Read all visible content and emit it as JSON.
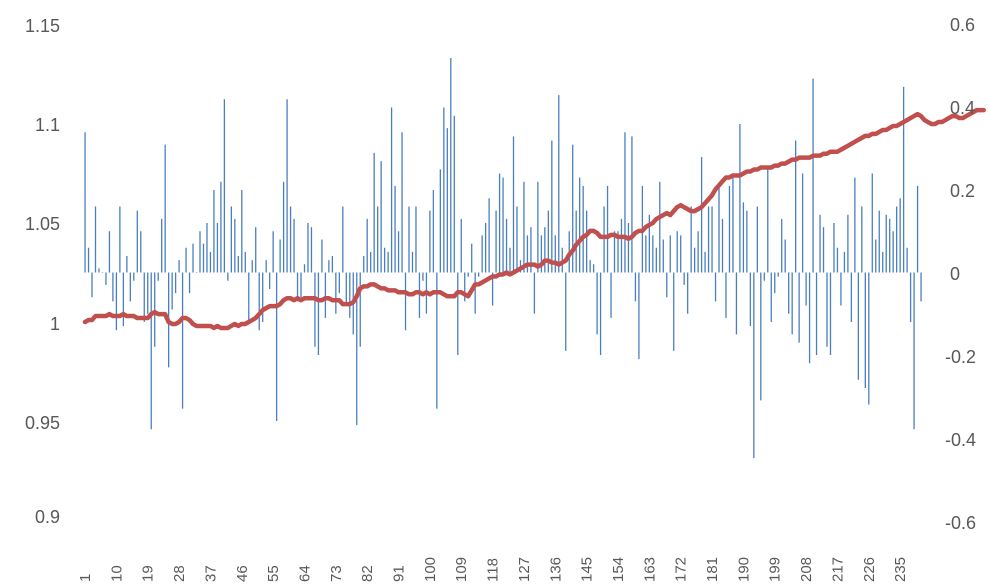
{
  "chart_data": {
    "type": "bar+line",
    "title": "",
    "grid": false,
    "legend": "none",
    "x_categories_labeled": [
      "1",
      "10",
      "19",
      "28",
      "37",
      "46",
      "55",
      "64",
      "73",
      "82",
      "91",
      "100",
      "109",
      "118",
      "127",
      "136",
      "145",
      "154",
      "163",
      "172",
      "181",
      "190",
      "199",
      "208",
      "217",
      "226",
      "235"
    ],
    "n_points": 241,
    "y_left": {
      "min": 0.9,
      "max": 1.15,
      "ticks": [
        "0.9",
        "0.95",
        "1",
        "1.05",
        "1.1",
        "1.15"
      ]
    },
    "y_right": {
      "min": -0.6,
      "max": 0.6,
      "ticks": [
        "-0.6",
        "-0.4",
        "-0.2",
        "0",
        "0.2",
        "0.4",
        "0.6"
      ]
    },
    "colors": {
      "bars": "#4a7fbf",
      "line": "#c0504d",
      "text": "#595959"
    },
    "series": [
      {
        "type": "bar",
        "axis": "right",
        "values": [
          0.34,
          0.06,
          -0.06,
          0.16,
          0.01,
          0.0,
          -0.03,
          0.1,
          -0.07,
          -0.14,
          0.16,
          -0.13,
          0.04,
          -0.07,
          -0.02,
          0.15,
          0.1,
          -0.12,
          -0.1,
          -0.38,
          -0.18,
          -0.02,
          0.13,
          0.31,
          -0.23,
          -0.09,
          -0.05,
          0.03,
          -0.33,
          0.06,
          -0.05,
          0.07,
          0.0,
          0.1,
          0.07,
          0.12,
          0.05,
          0.2,
          0.12,
          0.22,
          0.42,
          -0.02,
          0.16,
          0.13,
          0.04,
          0.2,
          0.05,
          -0.12,
          0.03,
          0.11,
          -0.14,
          -0.12,
          0.03,
          -0.04,
          0.1,
          -0.36,
          0.08,
          0.22,
          0.42,
          0.16,
          0.13,
          -0.07,
          -0.06,
          0.02,
          0.12,
          0.11,
          -0.18,
          -0.2,
          0.08,
          -0.11,
          0.03,
          0.04,
          -0.1,
          -0.05,
          0.16,
          -0.08,
          -0.11,
          -0.15,
          -0.37,
          -0.18,
          0.04,
          0.13,
          0.05,
          0.29,
          0.16,
          0.27,
          0.06,
          0.05,
          0.4,
          0.21,
          0.1,
          0.34,
          -0.14,
          0.16,
          0.05,
          0.16,
          -0.11,
          -0.02,
          -0.1,
          0.15,
          0.2,
          -0.33,
          0.25,
          0.4,
          0.35,
          0.52,
          0.38,
          -0.2,
          0.13,
          -0.07,
          -0.01,
          0.07,
          -0.1,
          -0.01,
          0.09,
          0.12,
          0.18,
          -0.08,
          0.15,
          0.24,
          0.23,
          0.13,
          0.06,
          0.33,
          0.16,
          0.03,
          0.22,
          0.09,
          0.11,
          -0.1,
          0.22,
          0.09,
          0.11,
          0.15,
          0.32,
          0.09,
          0.43,
          0.06,
          -0.19,
          0.1,
          0.31,
          0.15,
          0.23,
          0.21,
          0.15,
          0.03,
          0.02,
          -0.15,
          -0.2,
          0.16,
          0.21,
          -0.11,
          0.1,
          0.1,
          0.13,
          0.34,
          0.12,
          0.33,
          -0.07,
          -0.21,
          0.21,
          0.09,
          0.14,
          0.09,
          0.06,
          0.22,
          0.08,
          -0.06,
          0.09,
          -0.19,
          0.1,
          0.09,
          -0.03,
          -0.1,
          0.16,
          0.06,
          0.1,
          0.28,
          0.05,
          0.16,
          0.16,
          -0.07,
          0.21,
          0.13,
          -0.11,
          0.21,
          0.23,
          -0.15,
          0.36,
          0.17,
          0.15,
          -0.13,
          -0.45,
          0.16,
          -0.31,
          -0.02,
          0.25,
          -0.12,
          -0.05,
          -0.01,
          0.13,
          0.08,
          -0.1,
          -0.15,
          0.32,
          -0.17,
          0.24,
          -0.08,
          -0.22,
          0.47,
          -0.2,
          0.14,
          0.11,
          -0.18,
          -0.2,
          0.12,
          0.06,
          -0.08,
          0.05,
          0.14,
          -0.12,
          0.23,
          -0.26,
          0.16,
          -0.28,
          -0.32,
          0.24,
          0.08,
          0.15,
          0.05,
          0.14,
          0.13,
          0.1,
          0.16,
          0.18,
          0.45,
          0.06,
          -0.12,
          -0.38,
          0.21,
          -0.07
        ],
        "name": ""
      },
      {
        "type": "line",
        "axis": "left",
        "name": "",
        "values": [
          1.0,
          1.001,
          1.001,
          1.003,
          1.003,
          1.003,
          1.003,
          1.004,
          1.003,
          1.003,
          1.003,
          1.004,
          1.003,
          1.003,
          1.003,
          1.002,
          1.002,
          1.002,
          1.002,
          1.004,
          1.005,
          1.004,
          1.004,
          1.004,
          1.0,
          0.999,
          0.999,
          1.0,
          1.002,
          1.002,
          1.001,
          0.999,
          0.998,
          0.998,
          0.998,
          0.998,
          0.998,
          0.997,
          0.998,
          0.997,
          0.997,
          0.997,
          0.998,
          0.999,
          0.998,
          0.999,
          0.999,
          1.0,
          1.001,
          1.002,
          1.004,
          1.006,
          1.007,
          1.008,
          1.008,
          1.008,
          1.009,
          1.011,
          1.012,
          1.012,
          1.011,
          1.012,
          1.011,
          1.012,
          1.012,
          1.012,
          1.012,
          1.011,
          1.011,
          1.012,
          1.012,
          1.011,
          1.011,
          1.011,
          1.009,
          1.009,
          1.009,
          1.01,
          1.013,
          1.017,
          1.018,
          1.018,
          1.019,
          1.019,
          1.018,
          1.017,
          1.017,
          1.016,
          1.016,
          1.016,
          1.015,
          1.015,
          1.015,
          1.014,
          1.014,
          1.015,
          1.015,
          1.014,
          1.015,
          1.014,
          1.015,
          1.015,
          1.015,
          1.014,
          1.013,
          1.013,
          1.013,
          1.015,
          1.015,
          1.014,
          1.013,
          1.016,
          1.019,
          1.019,
          1.02,
          1.021,
          1.022,
          1.023,
          1.023,
          1.024,
          1.024,
          1.025,
          1.024,
          1.025,
          1.026,
          1.027,
          1.028,
          1.029,
          1.029,
          1.029,
          1.028,
          1.029,
          1.031,
          1.031,
          1.03,
          1.03,
          1.029,
          1.03,
          1.031,
          1.034,
          1.036,
          1.039,
          1.041,
          1.043,
          1.044,
          1.046,
          1.046,
          1.045,
          1.043,
          1.043,
          1.043,
          1.044,
          1.044,
          1.043,
          1.043,
          1.043,
          1.042,
          1.043,
          1.045,
          1.046,
          1.046,
          1.048,
          1.049,
          1.05,
          1.052,
          1.053,
          1.054,
          1.055,
          1.054,
          1.056,
          1.058,
          1.059,
          1.058,
          1.057,
          1.056,
          1.056,
          1.057,
          1.058,
          1.06,
          1.062,
          1.064,
          1.067,
          1.069,
          1.071,
          1.073,
          1.073,
          1.074,
          1.074,
          1.074,
          1.075,
          1.076,
          1.076,
          1.077,
          1.077,
          1.078,
          1.078,
          1.078,
          1.078,
          1.079,
          1.079,
          1.08,
          1.08,
          1.081,
          1.082,
          1.082,
          1.083,
          1.083,
          1.083,
          1.083,
          1.084,
          1.084,
          1.084,
          1.085,
          1.085,
          1.086,
          1.086,
          1.086,
          1.087,
          1.088,
          1.089,
          1.09,
          1.091,
          1.092,
          1.093,
          1.094,
          1.094,
          1.095,
          1.095,
          1.096,
          1.097,
          1.097,
          1.098,
          1.099,
          1.099,
          1.1,
          1.101,
          1.102,
          1.103,
          1.104,
          1.105,
          1.104,
          1.102,
          1.101,
          1.1,
          1.1,
          1.101,
          1.101,
          1.102,
          1.103,
          1.104,
          1.104,
          1.103,
          1.103,
          1.104,
          1.105,
          1.106,
          1.107,
          1.107,
          1.107
        ]
      }
    ]
  }
}
